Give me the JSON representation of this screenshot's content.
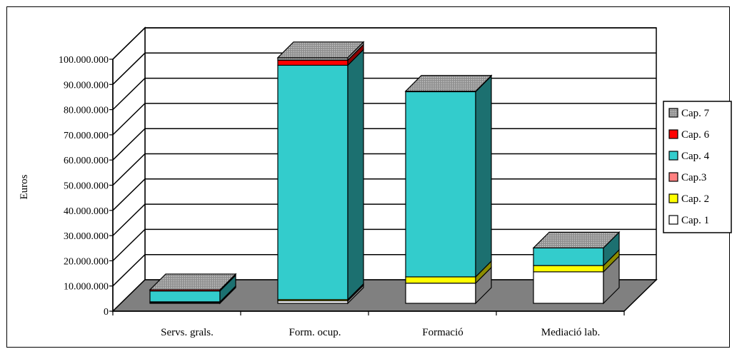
{
  "chart_data": {
    "type": "bar",
    "stacked": true,
    "three_d": true,
    "title": "",
    "xlabel": "",
    "ylabel": "Euros",
    "ylim": [
      0,
      100000000
    ],
    "yticks": [
      "0",
      "10.000.000",
      "20.000.000",
      "30.000.000",
      "40.000.000",
      "50.000.000",
      "60.000.000",
      "70.000.000",
      "80.000.000",
      "90.000.000",
      "100.000.000"
    ],
    "categories": [
      "Servs. grals.",
      "Form. ocup.",
      "Formació",
      "Mediació lab."
    ],
    "legend_position": "right",
    "gridlines": true,
    "series": [
      {
        "name": "Cap. 1",
        "color": "#ffffff",
        "values": [
          300000,
          1000000,
          8000000,
          12500000
        ]
      },
      {
        "name": "Cap. 2",
        "color": "#ffff00",
        "values": [
          300000,
          500000,
          2500000,
          2500000
        ]
      },
      {
        "name": "Cap.3",
        "color": "#ff8080",
        "values": [
          0,
          0,
          0,
          0
        ]
      },
      {
        "name": "Cap. 4",
        "color": "#33cccc",
        "values": [
          4300000,
          93000000,
          73500000,
          7000000
        ]
      },
      {
        "name": "Cap. 6",
        "color": "#ff0000",
        "values": [
          500000,
          2000000,
          200000,
          0
        ]
      },
      {
        "name": "Cap. 7",
        "color": "#9a9a9a",
        "values": [
          0,
          1000000,
          0,
          0
        ]
      }
    ]
  }
}
